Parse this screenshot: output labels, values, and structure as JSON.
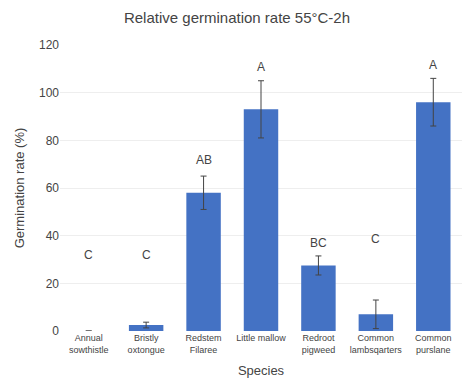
{
  "chart_data": {
    "type": "bar",
    "title": "Relative germination rate 55°C-2h",
    "xlabel": "Species",
    "ylabel": "Germination rate (%)",
    "categories": [
      "Annual\nsowthistle",
      "Bristly\noxtongue",
      "Redstem\nFilaree",
      "Little mallow",
      "Redroot\npigweed",
      "Common\nlambsqarters",
      "Common\npurslane"
    ],
    "values": [
      0,
      2.5,
      58,
      93,
      27.5,
      7,
      96
    ],
    "errors": [
      0,
      1.2,
      7,
      12,
      4,
      6,
      10
    ],
    "annotations": [
      {
        "text": "C",
        "x": "Annual\nsowthistle",
        "y": 28
      },
      {
        "text": "C",
        "x": "Bristly\noxtongue",
        "y": 28
      },
      {
        "text": "AB",
        "x": "Redstem\nFilaree",
        "y": 68
      },
      {
        "text": "A",
        "x": "Little mallow",
        "y": 107
      },
      {
        "text": "BC",
        "x": "Redroot\npigweed",
        "y": 33
      },
      {
        "text": "C",
        "x": "Common\nlambsqarters",
        "y": 35
      },
      {
        "text": "A",
        "x": "Common\npurslane",
        "y": 108
      }
    ],
    "color": "#4472C4",
    "ylim": [
      0,
      120
    ],
    "yticks": [
      0,
      20,
      40,
      60,
      80,
      100,
      120
    ],
    "grid": true
  }
}
